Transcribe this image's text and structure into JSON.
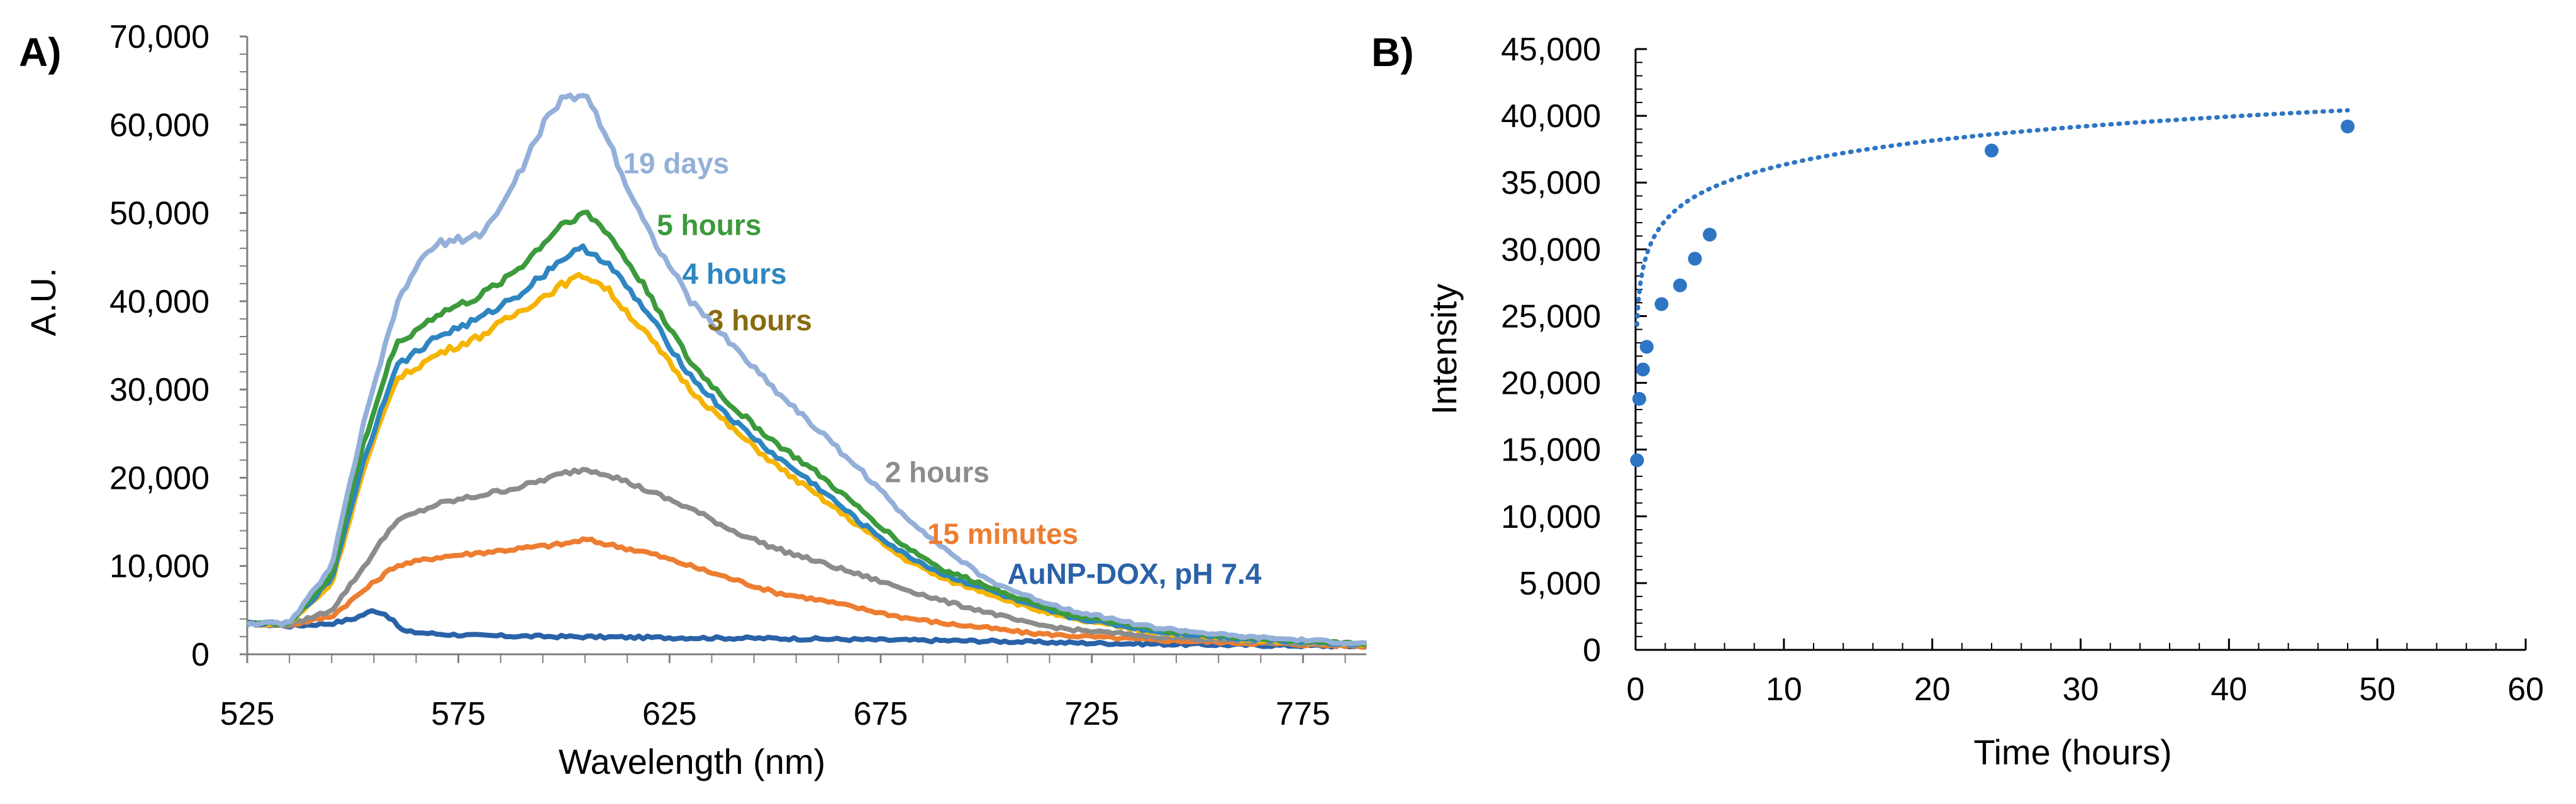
{
  "chart_data": [
    {
      "panel_label": "A)",
      "type": "line",
      "title": "",
      "xlabel": "Wavelength (nm)",
      "ylabel": "A.U.",
      "xlim": [
        525,
        790
      ],
      "ylim": [
        0,
        70000
      ],
      "xticks": [
        525,
        575,
        625,
        675,
        725,
        775
      ],
      "xtick_labels": [
        "525",
        "575",
        "625",
        "675",
        "725",
        "775"
      ],
      "yticks": [
        0,
        10000,
        20000,
        30000,
        40000,
        50000,
        60000,
        70000
      ],
      "ytick_labels": [
        "0",
        "10,000",
        "20,000",
        "30,000",
        "40,000",
        "50,000",
        "60,000",
        "70,000"
      ],
      "grid": false,
      "legend": "inline labels",
      "series": [
        {
          "name": "AuNP-DOX, pH 7.4",
          "color": "#2a62a8",
          "label_at": [
            705,
            8000
          ],
          "x": [
            525,
            535,
            545,
            550,
            555,
            558,
            562,
            570,
            580,
            600,
            620,
            650,
            680,
            700,
            720,
            750,
            790
          ],
          "y": [
            3500,
            3200,
            3500,
            4000,
            5000,
            4500,
            2600,
            2300,
            2100,
            2000,
            1900,
            1800,
            1600,
            1500,
            1300,
            1100,
            900
          ]
        },
        {
          "name": "15 minutes",
          "color": "#ed7d31",
          "label_at": [
            686,
            12500
          ],
          "x": [
            525,
            535,
            545,
            552,
            560,
            570,
            580,
            590,
            600,
            605,
            610,
            620,
            630,
            640,
            650,
            660,
            670,
            680,
            690,
            700,
            710,
            720,
            740,
            760,
            790
          ],
          "y": [
            3500,
            3300,
            4300,
            7000,
            10000,
            11000,
            11500,
            12000,
            12500,
            13000,
            12500,
            11500,
            10000,
            8500,
            7000,
            6200,
            5200,
            4200,
            3500,
            3000,
            2400,
            2100,
            1600,
            1300,
            900
          ]
        },
        {
          "name": "2 hours",
          "color": "#8c8c8c",
          "label_at": [
            676,
            19500
          ],
          "x": [
            525,
            535,
            545,
            552,
            560,
            570,
            580,
            590,
            600,
            605,
            610,
            620,
            630,
            640,
            650,
            660,
            670,
            680,
            690,
            700,
            710,
            720,
            740,
            760,
            790
          ],
          "y": [
            3500,
            3300,
            5000,
            9500,
            15000,
            17000,
            18000,
            19000,
            20500,
            21000,
            20500,
            18500,
            16500,
            14000,
            12000,
            10500,
            9000,
            7500,
            6000,
            4800,
            3500,
            2800,
            2000,
            1500,
            1000
          ]
        },
        {
          "name": "3 hours",
          "color": "#f5b400",
          "label_label_color": "#8a6a10",
          "label_at": [
            634,
            36700
          ],
          "x": [
            525,
            535,
            545,
            552,
            560,
            570,
            580,
            590,
            600,
            605,
            610,
            620,
            630,
            640,
            650,
            660,
            670,
            680,
            690,
            700,
            710,
            720,
            740,
            760,
            790
          ],
          "y": [
            3500,
            3500,
            8000,
            20000,
            31000,
            34000,
            36000,
            39000,
            42000,
            43000,
            41500,
            36000,
            30000,
            25500,
            21500,
            18000,
            14500,
            11000,
            8500,
            7000,
            5300,
            4000,
            2500,
            1700,
            1100
          ]
        },
        {
          "name": "4 hours",
          "color": "#2e86c1",
          "label_at": [
            628,
            42000
          ],
          "x": [
            525,
            535,
            545,
            552,
            560,
            570,
            580,
            590,
            600,
            605,
            610,
            620,
            630,
            640,
            650,
            660,
            670,
            680,
            690,
            700,
            710,
            720,
            740,
            760,
            790
          ],
          "y": [
            3500,
            3500,
            8500,
            21000,
            32500,
            36000,
            38000,
            41000,
            45000,
            46000,
            44500,
            38500,
            31500,
            26500,
            22500,
            19000,
            15000,
            11500,
            9000,
            7400,
            5600,
            4200,
            2600,
            1800,
            1100
          ]
        },
        {
          "name": "5 hours",
          "color": "#3c9a3c",
          "label_at": [
            622,
            47500
          ],
          "x": [
            525,
            535,
            545,
            552,
            560,
            570,
            580,
            590,
            600,
            605,
            610,
            620,
            630,
            640,
            650,
            660,
            670,
            680,
            690,
            700,
            710,
            720,
            740,
            760,
            790
          ],
          "y": [
            3500,
            3500,
            9000,
            23000,
            35000,
            38500,
            40500,
            44000,
            49000,
            50000,
            48000,
            41000,
            33000,
            28000,
            24000,
            20500,
            16500,
            12500,
            9500,
            7800,
            6000,
            4500,
            2800,
            1900,
            1200
          ]
        },
        {
          "name": "19 days",
          "color": "#94b0d9",
          "label_at": [
            614,
            54500
          ],
          "x": [
            525,
            535,
            545,
            552,
            560,
            565,
            570,
            580,
            585,
            590,
            595,
            600,
            605,
            610,
            615,
            620,
            630,
            640,
            650,
            660,
            670,
            680,
            690,
            700,
            710,
            720,
            740,
            760,
            790
          ],
          "y": [
            3500,
            3500,
            10000,
            25000,
            39000,
            44000,
            46500,
            47500,
            50500,
            55000,
            60000,
            63000,
            63500,
            59000,
            53000,
            48000,
            40000,
            35000,
            30000,
            25500,
            21000,
            16000,
            12000,
            8500,
            6500,
            5000,
            3000,
            2000,
            1200
          ]
        }
      ]
    },
    {
      "panel_label": "B)",
      "type": "scatter",
      "title": "",
      "xlabel": "Time (hours)",
      "ylabel": "Intensity",
      "xlim": [
        0,
        60
      ],
      "ylim": [
        0,
        45000
      ],
      "xticks": [
        0,
        10,
        20,
        30,
        40,
        50,
        60
      ],
      "xtick_labels": [
        "0",
        "10",
        "20",
        "30",
        "40",
        "50",
        "60"
      ],
      "yticks": [
        0,
        5000,
        10000,
        15000,
        20000,
        25000,
        30000,
        35000,
        40000,
        45000
      ],
      "ytick_labels": [
        "0",
        "5,000",
        "10,000",
        "15,000",
        "20,000",
        "25,000",
        "30,000",
        "35,000",
        "40,000",
        "45,000"
      ],
      "grid": false,
      "legend": "none",
      "marker_color": "#2e75c4",
      "points": {
        "x": [
          0.1,
          0.25,
          0.5,
          0.75,
          1.75,
          3,
          4,
          5,
          24,
          48
        ],
        "y": [
          14200,
          18800,
          21000,
          22700,
          25900,
          27300,
          29300,
          31100,
          37400,
          39200
        ]
      },
      "trendline": {
        "style": "dotted",
        "type": "logarithmic",
        "a": 30350,
        "b": 2600,
        "x_range": [
          0.1,
          48
        ]
      }
    }
  ]
}
